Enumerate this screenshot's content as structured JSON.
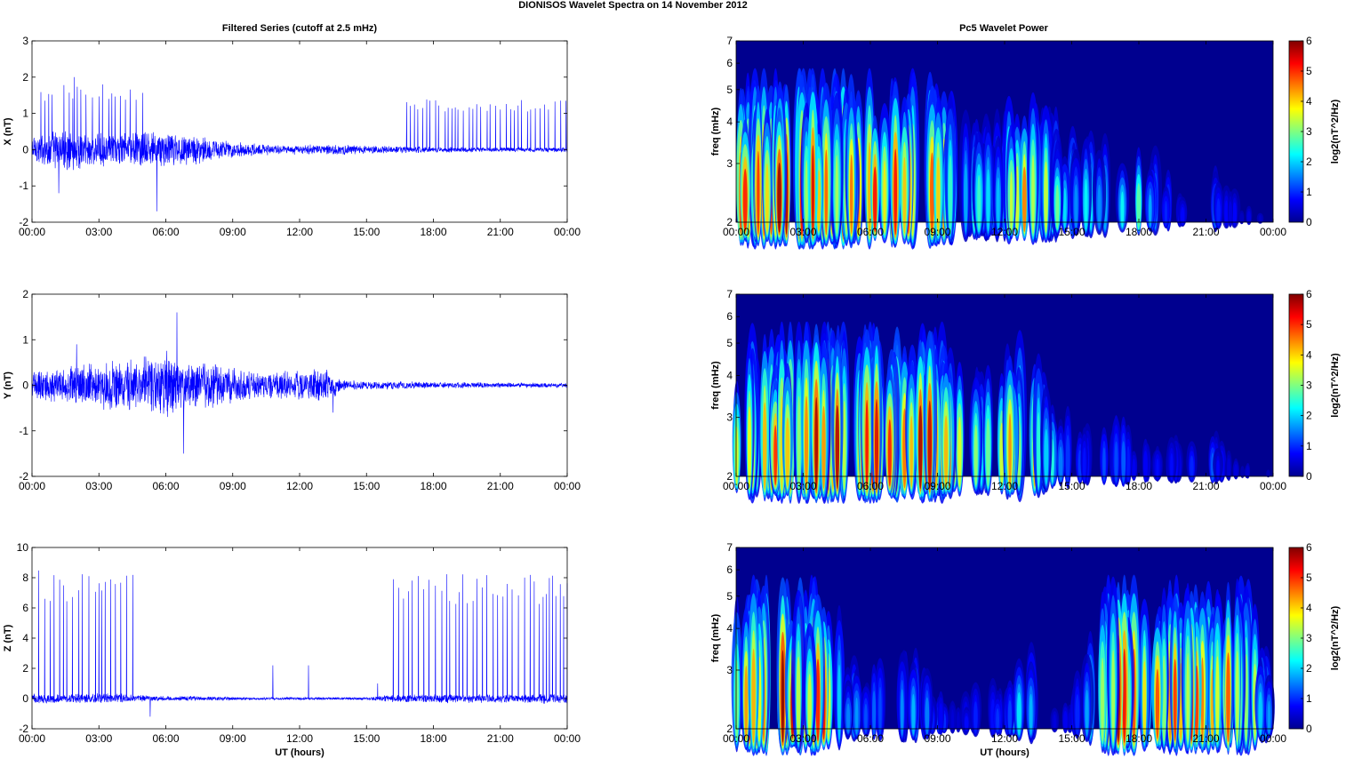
{
  "figure": {
    "suptitle": "DIONISOS Wavelet Spectra on 14 November  2012",
    "left_title": "Filtered Series (cutoff at 2.5 mHz)",
    "right_title": "Pc5 Wavelet Power",
    "xlabel": "UT (hours)"
  },
  "colors": {
    "series_line": "#0000ff",
    "spectrogram_bg": "#00008f"
  },
  "chart_data": [
    {
      "type": "line",
      "ylabel": "X (nT)",
      "ylim": [
        -2,
        3
      ],
      "yticks": [
        "-2",
        "-1",
        "0",
        "1",
        "2",
        "3"
      ],
      "xlim_hours": [
        0,
        24
      ],
      "xticks": [
        "00:00",
        "03:00",
        "06:00",
        "09:00",
        "12:00",
        "15:00",
        "18:00",
        "21:00",
        "00:00"
      ],
      "envelope": {
        "hours": [
          0,
          1,
          2,
          3,
          4,
          5,
          6,
          7,
          8,
          9,
          10,
          11,
          12,
          13,
          14,
          15,
          16,
          17,
          18,
          19,
          20,
          21,
          22,
          23,
          24
        ],
        "amplitude_nT": [
          0.4,
          0.5,
          0.5,
          0.4,
          0.45,
          0.45,
          0.45,
          0.4,
          0.3,
          0.2,
          0.15,
          0.13,
          0.12,
          0.12,
          0.12,
          0.1,
          0.1,
          0.08,
          0.07,
          0.07,
          0.06,
          0.06,
          0.06,
          0.06,
          0.06
        ]
      },
      "spike_regions": [
        [
          0.4,
          5.0
        ],
        [
          16.8,
          24
        ]
      ],
      "spike_max_nT": [
        1.8,
        1.4
      ],
      "peaks": [
        {
          "hour": 1.9,
          "value": 2.0
        },
        {
          "hour": 1.2,
          "value": -1.2
        },
        {
          "hour": 5.6,
          "value": -1.7
        }
      ]
    },
    {
      "type": "line",
      "ylabel": "Y (nT)",
      "ylim": [
        -2,
        2
      ],
      "yticks": [
        "-2",
        "-1",
        "0",
        "1",
        "2"
      ],
      "xlim_hours": [
        0,
        24
      ],
      "xticks": [
        "00:00",
        "03:00",
        "06:00",
        "09:00",
        "12:00",
        "15:00",
        "18:00",
        "21:00",
        "00:00"
      ],
      "envelope": {
        "hours": [
          0,
          1,
          2,
          3,
          4,
          5,
          6,
          7,
          8,
          9,
          10,
          11,
          12,
          13,
          14,
          15,
          16,
          17,
          18,
          19,
          20,
          21,
          22,
          23,
          24
        ],
        "amplitude_nT": [
          0.3,
          0.35,
          0.4,
          0.45,
          0.55,
          0.55,
          0.65,
          0.5,
          0.45,
          0.35,
          0.3,
          0.28,
          0.3,
          0.35,
          0.12,
          0.08,
          0.08,
          0.07,
          0.06,
          0.06,
          0.06,
          0.05,
          0.05,
          0.05,
          0.05
        ]
      },
      "spike_regions": [],
      "spike_max_nT": [],
      "peaks": [
        {
          "hour": 6.5,
          "value": 1.6
        },
        {
          "hour": 6.8,
          "value": -1.5
        },
        {
          "hour": 13.5,
          "value": -0.6
        },
        {
          "hour": 2.0,
          "value": 0.9
        }
      ]
    },
    {
      "type": "line",
      "ylabel": "Z (nT)",
      "ylim": [
        -2,
        10
      ],
      "yticks": [
        "-2",
        "0",
        "2",
        "4",
        "6",
        "8",
        "10"
      ],
      "xlim_hours": [
        0,
        24
      ],
      "xticks": [
        "00:00",
        "03:00",
        "06:00",
        "09:00",
        "12:00",
        "15:00",
        "18:00",
        "21:00",
        "00:00"
      ],
      "envelope": {
        "hours": [
          0,
          1,
          2,
          3,
          4,
          5,
          6,
          7,
          8,
          9,
          10,
          11,
          12,
          13,
          14,
          15,
          16,
          17,
          18,
          19,
          20,
          21,
          22,
          23,
          24
        ],
        "amplitude_nT": [
          0.3,
          0.3,
          0.3,
          0.3,
          0.3,
          0.2,
          0.15,
          0.15,
          0.12,
          0.1,
          0.08,
          0.08,
          0.08,
          0.08,
          0.08,
          0.1,
          0.2,
          0.25,
          0.25,
          0.25,
          0.25,
          0.25,
          0.25,
          0.3,
          0.3
        ]
      },
      "spike_regions": [
        [
          0.3,
          4.6
        ],
        [
          16.2,
          24
        ]
      ],
      "spike_max_nT": [
        8.5,
        8.3
      ],
      "peaks": [
        {
          "hour": 10.8,
          "value": 2.2
        },
        {
          "hour": 12.4,
          "value": 2.2
        },
        {
          "hour": 15.5,
          "value": 1.0
        },
        {
          "hour": 5.3,
          "value": -1.2
        }
      ]
    },
    {
      "type": "heatmap",
      "ylabel": "freq (mHz)",
      "ylim": [
        2,
        7
      ],
      "yscale": "log",
      "yticks": [
        "2",
        "3",
        "4",
        "5",
        "6",
        "7"
      ],
      "xlim_hours": [
        0,
        24
      ],
      "xticks": [
        "00:00",
        "03:00",
        "06:00",
        "09:00",
        "12:00",
        "15:00",
        "18:00",
        "21:00",
        "00:00"
      ],
      "colorbar": {
        "label": "log2(nT^2/Hz)",
        "range": [
          0,
          6
        ],
        "ticks": [
          "0",
          "1",
          "2",
          "3",
          "4",
          "5",
          "6"
        ]
      },
      "activity": {
        "hours": [
          0,
          1,
          2,
          3,
          4,
          5,
          6,
          7,
          8,
          9,
          10,
          11,
          12,
          13,
          14,
          15,
          16,
          17,
          18,
          19,
          20,
          21,
          22,
          23,
          24
        ],
        "log2_power": [
          5.5,
          5.2,
          6.0,
          5.0,
          5.2,
          5.5,
          5.0,
          5.2,
          5.5,
          5.0,
          3.0,
          2.5,
          3.0,
          4.5,
          3.0,
          2.5,
          2.0,
          2.0,
          3.0,
          1.2,
          1.0,
          2.0,
          0.8,
          0.5,
          0.3
        ]
      }
    },
    {
      "type": "heatmap",
      "ylabel": "freq (mHz)",
      "ylim": [
        2,
        7
      ],
      "yscale": "log",
      "yticks": [
        "2",
        "3",
        "4",
        "5",
        "6",
        "7"
      ],
      "xlim_hours": [
        0,
        24
      ],
      "xticks": [
        "00:00",
        "03:00",
        "06:00",
        "09:00",
        "12:00",
        "15:00",
        "18:00",
        "21:00",
        "00:00"
      ],
      "colorbar": {
        "label": "log2(nT^2/Hz)",
        "range": [
          0,
          6
        ],
        "ticks": [
          "0",
          "1",
          "2",
          "3",
          "4",
          "5",
          "6"
        ]
      },
      "activity": {
        "hours": [
          0,
          1,
          2,
          3,
          4,
          5,
          6,
          7,
          8,
          9,
          10,
          11,
          12,
          13,
          14,
          15,
          16,
          17,
          18,
          19,
          20,
          21,
          22,
          23,
          24
        ],
        "log2_power": [
          4.5,
          4.5,
          5.0,
          5.0,
          5.5,
          5.5,
          5.5,
          6.0,
          5.5,
          5.5,
          3.5,
          3.0,
          4.0,
          5.0,
          2.5,
          1.5,
          1.0,
          1.5,
          1.0,
          0.8,
          1.0,
          1.5,
          0.6,
          0.4,
          0.3
        ]
      }
    },
    {
      "type": "heatmap",
      "ylabel": "freq (mHz)",
      "ylim": [
        2,
        7
      ],
      "yscale": "log",
      "yticks": [
        "2",
        "3",
        "4",
        "5",
        "6",
        "7"
      ],
      "xlim_hours": [
        0,
        24
      ],
      "xticks": [
        "00:00",
        "03:00",
        "06:00",
        "09:00",
        "12:00",
        "15:00",
        "18:00",
        "21:00",
        "00:00"
      ],
      "colorbar": {
        "label": "log2(nT^2/Hz)",
        "range": [
          0,
          6
        ],
        "ticks": [
          "0",
          "1",
          "2",
          "3",
          "4",
          "5",
          "6"
        ]
      },
      "activity": {
        "hours": [
          0,
          1,
          2,
          3,
          4,
          5,
          6,
          7,
          8,
          9,
          10,
          11,
          12,
          13,
          14,
          15,
          16,
          17,
          18,
          19,
          20,
          21,
          22,
          23,
          24
        ],
        "log2_power": [
          4.5,
          5.0,
          6.0,
          5.5,
          5.5,
          1.8,
          1.8,
          1.8,
          2.0,
          1.2,
          0.6,
          1.2,
          1.0,
          2.5,
          0.8,
          0.6,
          3.5,
          5.5,
          4.5,
          5.0,
          5.0,
          5.5,
          5.0,
          4.5,
          1.0
        ]
      }
    }
  ]
}
